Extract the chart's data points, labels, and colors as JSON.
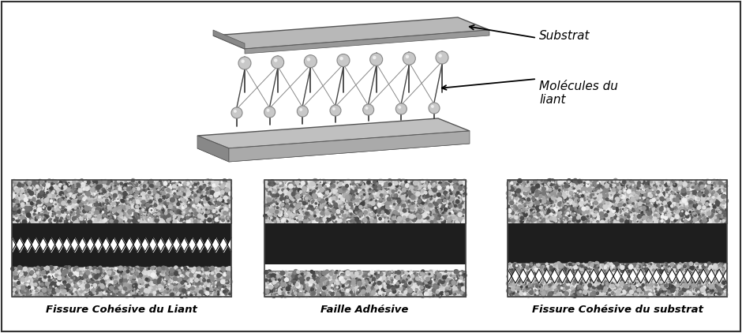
{
  "bg_color": "#ffffff",
  "border_color": "#333333",
  "labels": [
    "Fissure Cohésive du Liant",
    "Faille Adhésive",
    "Fissure Cohésive du substrat"
  ],
  "label_substrat": "Substrat",
  "label_molecules": "Molécules du\nliant",
  "granite_base": "#c8c8c8",
  "bitumen_color": "#222222",
  "crack_color": "#ffffff"
}
